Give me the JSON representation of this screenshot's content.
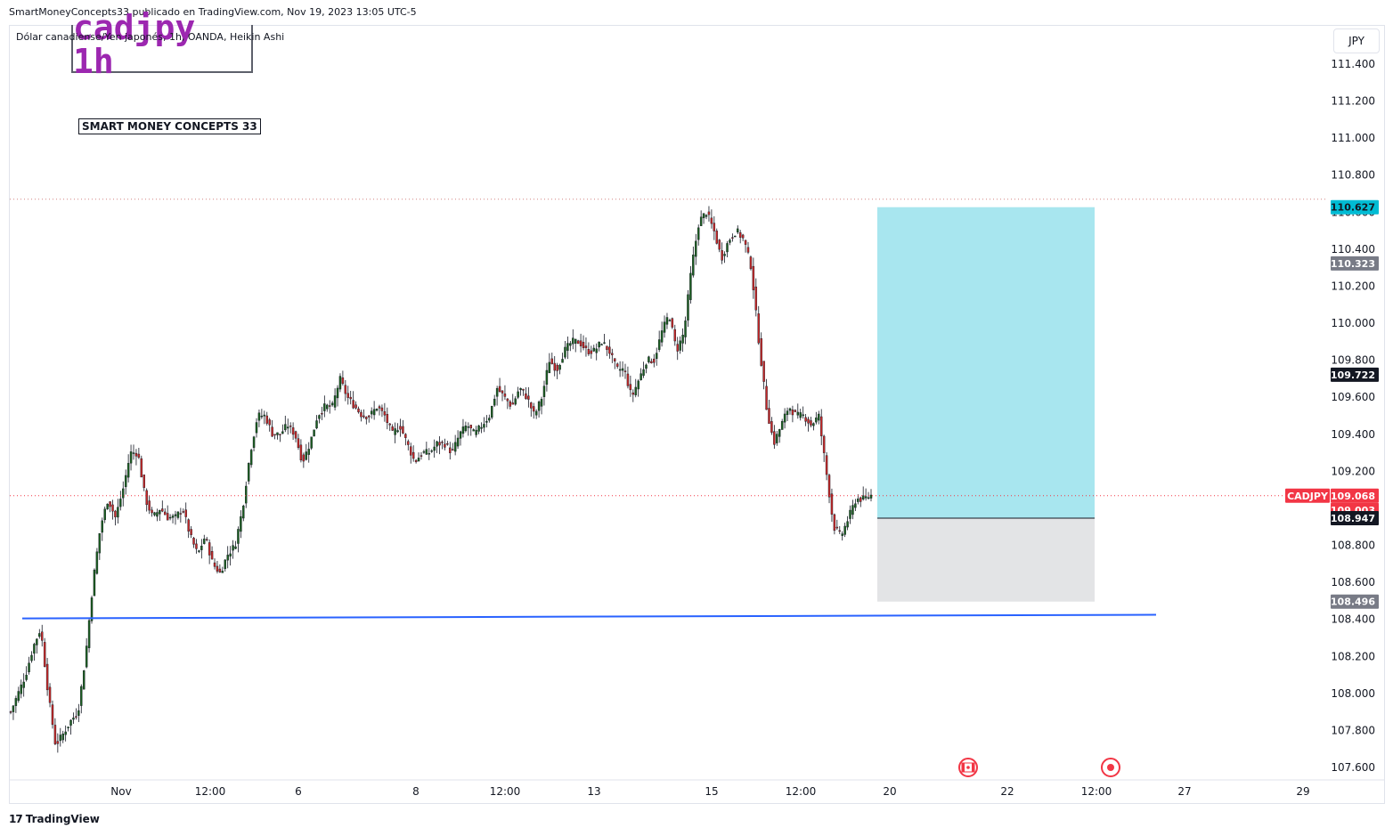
{
  "header": {
    "publisher_line": "SmartMoneyConcepts33 publicado en TradingView.com, Nov 19, 2023 13:05 UTC-5"
  },
  "symbol": {
    "description": "Dólar canadiense/Yen japonés, 1h, OANDA, Heikin Ashi",
    "ticker": "CADJPY",
    "currency": "JPY"
  },
  "annotations": {
    "title": "cadjpy 1h",
    "brand": "SMART MONEY CONCEPTS 33"
  },
  "footer": {
    "logo_text": "TradingView",
    "logo_mark": "17"
  },
  "colors": {
    "bull": "#1b5e20",
    "bear": "#c62828",
    "target_zone": "#a8e6ef",
    "stop_zone": "#e3e4e6",
    "support_line": "#2962ff",
    "price_tag": "#f23645",
    "target_tag": "#00bcd4",
    "gray_tag": "#787b86",
    "black_tag": "#131722"
  },
  "chart_data": {
    "type": "candlestick",
    "title": "cadjpy 1h",
    "y_axis": {
      "min": 107.5,
      "max": 111.6,
      "ticks": [
        111.4,
        111.2,
        111.0,
        110.8,
        110.6,
        110.4,
        110.2,
        110.0,
        109.8,
        109.6,
        109.4,
        109.2,
        109.0,
        108.8,
        108.6,
        108.4,
        108.2,
        108.0,
        107.8,
        107.6
      ],
      "tick_labels": [
        "111.400",
        "111.200",
        "111.000",
        "110.800",
        "110.600",
        "110.400",
        "110.200",
        "110.000",
        "109.800",
        "109.600",
        "109.400",
        "109.200",
        "109.000",
        "108.800",
        "108.600",
        "108.400",
        "108.200",
        "108.000",
        "107.800",
        "107.600"
      ]
    },
    "x_axis": {
      "tick_labels": [
        "Nov",
        "12:00",
        "6",
        "8",
        "12:00",
        "13",
        "15",
        "12:00",
        "20",
        "22",
        "12:00",
        "27",
        "29"
      ]
    },
    "series_path": [
      [
        0,
        107.9
      ],
      [
        2,
        108.1
      ],
      [
        3,
        108.25
      ],
      [
        4,
        108.35
      ],
      [
        5,
        108.0
      ],
      [
        6,
        107.72
      ],
      [
        7,
        107.78
      ],
      [
        8,
        107.85
      ],
      [
        9,
        107.9
      ],
      [
        10,
        108.2
      ],
      [
        11,
        108.6
      ],
      [
        12,
        108.9
      ],
      [
        13,
        109.05
      ],
      [
        14,
        108.95
      ],
      [
        15,
        109.1
      ],
      [
        16,
        109.3
      ],
      [
        17,
        109.3
      ],
      [
        18,
        109.05
      ],
      [
        19,
        108.95
      ],
      [
        20,
        109.0
      ],
      [
        21,
        108.95
      ],
      [
        22,
        108.95
      ],
      [
        23,
        109.0
      ],
      [
        24,
        108.85
      ],
      [
        25,
        108.75
      ],
      [
        26,
        108.85
      ],
      [
        27,
        108.7
      ],
      [
        28,
        108.65
      ],
      [
        29,
        108.75
      ],
      [
        30,
        108.8
      ],
      [
        31,
        109.0
      ],
      [
        32,
        109.3
      ],
      [
        33,
        109.5
      ],
      [
        34,
        109.5
      ],
      [
        35,
        109.4
      ],
      [
        36,
        109.4
      ],
      [
        37,
        109.45
      ],
      [
        38,
        109.4
      ],
      [
        39,
        109.25
      ],
      [
        40,
        109.35
      ],
      [
        41,
        109.5
      ],
      [
        42,
        109.55
      ],
      [
        43,
        109.55
      ],
      [
        44,
        109.7
      ],
      [
        45,
        109.6
      ],
      [
        46,
        109.55
      ],
      [
        47,
        109.5
      ],
      [
        48,
        109.5
      ],
      [
        49,
        109.55
      ],
      [
        50,
        109.5
      ],
      [
        51,
        109.4
      ],
      [
        52,
        109.45
      ],
      [
        53,
        109.35
      ],
      [
        54,
        109.25
      ],
      [
        55,
        109.3
      ],
      [
        56,
        109.3
      ],
      [
        57,
        109.35
      ],
      [
        58,
        109.35
      ],
      [
        59,
        109.3
      ],
      [
        60,
        109.4
      ],
      [
        61,
        109.45
      ],
      [
        62,
        109.4
      ],
      [
        63,
        109.45
      ],
      [
        64,
        109.5
      ],
      [
        65,
        109.65
      ],
      [
        66,
        109.6
      ],
      [
        67,
        109.55
      ],
      [
        68,
        109.65
      ],
      [
        69,
        109.6
      ],
      [
        70,
        109.5
      ],
      [
        71,
        109.6
      ],
      [
        72,
        109.8
      ],
      [
        73,
        109.75
      ],
      [
        74,
        109.85
      ],
      [
        75,
        109.9
      ],
      [
        76,
        109.9
      ],
      [
        77,
        109.85
      ],
      [
        78,
        109.85
      ],
      [
        79,
        109.9
      ],
      [
        80,
        109.85
      ],
      [
        81,
        109.75
      ],
      [
        82,
        109.75
      ],
      [
        83,
        109.6
      ],
      [
        84,
        109.7
      ],
      [
        85,
        109.8
      ],
      [
        86,
        109.8
      ],
      [
        87,
        109.95
      ],
      [
        88,
        110.05
      ],
      [
        89,
        109.85
      ],
      [
        90,
        109.95
      ],
      [
        91,
        110.3
      ],
      [
        92,
        110.55
      ],
      [
        93,
        110.6
      ],
      [
        94,
        110.5
      ],
      [
        95,
        110.35
      ],
      [
        96,
        110.45
      ],
      [
        97,
        110.5
      ],
      [
        98,
        110.45
      ],
      [
        99,
        110.3
      ],
      [
        100,
        109.9
      ],
      [
        101,
        109.55
      ],
      [
        102,
        109.35
      ],
      [
        103,
        109.45
      ],
      [
        104,
        109.55
      ],
      [
        105,
        109.5
      ],
      [
        106,
        109.5
      ],
      [
        107,
        109.45
      ],
      [
        108,
        109.5
      ],
      [
        109,
        109.2
      ],
      [
        110,
        108.9
      ],
      [
        111,
        108.85
      ],
      [
        112,
        108.95
      ],
      [
        113,
        109.05
      ],
      [
        114,
        109.05
      ],
      [
        115,
        109.07
      ]
    ],
    "x_span": 115,
    "last_price": 109.068,
    "last_price_label": "109.068",
    "countdown_label": "109.003",
    "position": {
      "target": 110.627,
      "target_label": "110.627",
      "entry": 108.947,
      "entry_label": "108.947",
      "stop": 108.496,
      "stop_label": "108.496"
    },
    "marker_levels": [
      {
        "value": 110.323,
        "label": "110.323",
        "style": "gray"
      },
      {
        "value": 109.722,
        "label": "109.722",
        "style": "black"
      }
    ],
    "support_line": {
      "start": 108.405,
      "end": 108.425
    },
    "high_dotted_line": 110.67,
    "event_icons": [
      "canada-flag-icon",
      "japan-flag-icon"
    ]
  }
}
